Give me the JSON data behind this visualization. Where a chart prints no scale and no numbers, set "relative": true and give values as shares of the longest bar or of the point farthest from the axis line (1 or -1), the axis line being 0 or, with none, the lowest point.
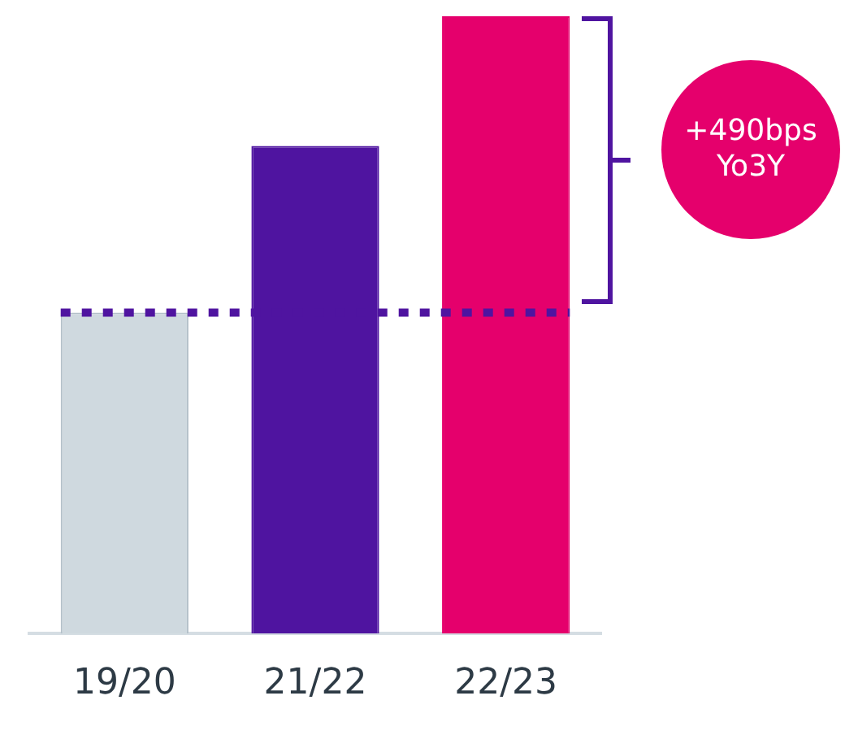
{
  "chart_data": {
    "type": "bar",
    "relative": true,
    "categories": [
      "19/20",
      "21/22",
      "22/23"
    ],
    "values": [
      0.52,
      0.79,
      1
    ],
    "colors": [
      "#cfd9df",
      "#4f14a0",
      "#e5006c"
    ],
    "ref_lines": [
      {
        "axis": "y",
        "value": 0.52,
        "color": "#4f14a0",
        "line_style": "dotted"
      }
    ],
    "annotations": [
      "+490bps\nYo3Y"
    ],
    "grid": false,
    "legend": false
  }
}
